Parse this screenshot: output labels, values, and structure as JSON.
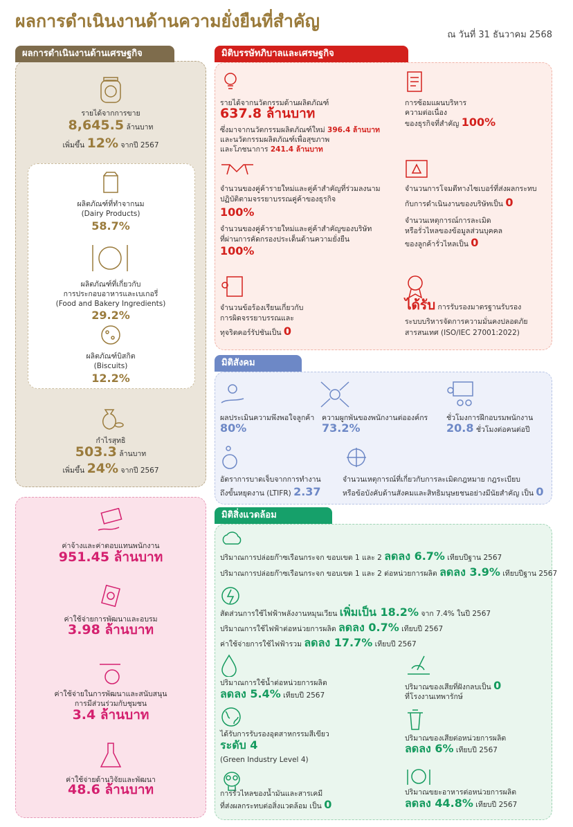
{
  "header": {
    "title": "ผลการดำเนินงานด้านความยั่งยืนที่สำคัญ",
    "date": "ณ วันที่ 31 ธันวาคม 2568"
  },
  "economic": {
    "title": "ผลการดำเนินงานด้านเศรษฐกิจ",
    "sales": {
      "label": "รายได้จากการขาย",
      "value": "8,645.5",
      "unit": "ล้านบาท",
      "change_prefix": "เพิ่มขึ้น",
      "change": "12%",
      "change_suffix": "จากปี 2567"
    },
    "products": [
      {
        "lines": [
          "ผลิตภัณฑ์ที่ทำจากนม",
          "(Dairy Products)"
        ],
        "share": "58.7%"
      },
      {
        "lines": [
          "ผลิตภัณฑ์ที่เกี่ยวกับ",
          "การประกอบอาหารและเบเกอรี่",
          "(Food and Bakery Ingredients)"
        ],
        "share": "29.2%"
      },
      {
        "lines": [
          "ผลิตภัณฑ์บิสกิต",
          "(Biscuits)"
        ],
        "share": "12.2%"
      }
    ],
    "net_profit": {
      "label": "กำไรสุทธิ",
      "value": "503.3",
      "unit": "ล้านบาท",
      "change_prefix": "เพิ่มขึ้น",
      "change": "24%",
      "change_suffix": "จากปี 2567"
    }
  },
  "spending": [
    {
      "lines": [
        "ค่าจ้างและค่าตอบแทนพนักงาน"
      ],
      "value": "951.45 ล้านบาท"
    },
    {
      "lines": [
        "ค่าใช้จ่ายการพัฒนาและอบรม"
      ],
      "value": "3.98 ล้านบาท"
    },
    {
      "lines": [
        "ค่าใช้จ่ายในการพัฒนาและสนับสนุน",
        "การมีส่วนร่วมกับชุมชน"
      ],
      "value": "3.4 ล้านบาท"
    },
    {
      "lines": [
        "ค่าใช้จ่ายด้านวิจัยและพัฒนา"
      ],
      "value": "48.6 ล้านบาท"
    }
  ],
  "governance": {
    "title": "มิติบรรษัทภิบาลและเศรษฐกิจ",
    "innovation": {
      "label": "รายได้จากนวัตกรรมด้านผลิตภัณฑ์",
      "value": "637.8 ล้านบาท",
      "line1": "ซึ่งมาจากนวัตกรรมผลิตภัณฑ์ใหม่",
      "value1": "396.4 ล้านบาท",
      "line2": "และนวัตกรรมผลิตภัณฑ์เพื่อสุขภาพ",
      "line3": "และโภชนาการ",
      "value2": "241.4 ล้านบาท"
    },
    "bcp": {
      "lines": [
        "การซ้อมแผนบริหาร",
        "ความต่อเนื่อง",
        "ของธุรกิจที่สำคัญ"
      ],
      "value": "100%"
    },
    "suppliers": [
      {
        "lines": [
          "จำนวนของคู่ค้ารายใหม่และคู่ค้าสำคัญที่ร่วมลงนาม",
          "ปฏิบัติตามจรรยาบรรณคู่ค้าของธุรกิจ"
        ],
        "value": "100%"
      },
      {
        "lines": [
          "จำนวนของคู่ค้ารายใหม่และคู่ค้าสำคัญของบริษัท",
          "ที่ผ่านการคัดกรองประเด็นด้านความยั่งยืน"
        ],
        "value": "100%"
      }
    ],
    "cyber": {
      "line1": "จำนวนการโจมตีทางไซเบอร์ที่ส่งผลกระทบ",
      "line2": "กับการดำเนินงานของบริษัทเป็น",
      "value": "0"
    },
    "privacy": {
      "line1": "จำนวนเหตุการณ์การละเมิด",
      "line2": "หรือรั่วไหลของข้อมูลส่วนบุคคล",
      "line3": "ของลูกค้ารั่วไหลเป็น",
      "value": "0"
    },
    "complaints": {
      "line1": "จำนวนข้อร้องเรียนเกี่ยวกับ",
      "line2": "การผิดจรรยาบรรณและ",
      "line3": "ทุจริตคอร์รัปชันเป็น",
      "value": "0"
    },
    "iso": {
      "highlight": "ได้รับ",
      "line1": "การรับรองมาตรฐานรับรอง",
      "line2": "ระบบบริหารจัดการความมั่นคงปลอดภัย",
      "line3": "สารสนเทศ (ISO/IEC 27001:2022)"
    }
  },
  "social": {
    "title": "มิติสังคม",
    "satisfaction": {
      "label": "ผลประเมินความพึงพอใจลูกค้า",
      "value": "80%"
    },
    "engagement": {
      "label": "ความผูกพันของพนักงานต่อองค์กร",
      "value": "73.2%"
    },
    "training": {
      "label": "ชั่วโมงการฝึกอบรมพนักงาน",
      "value": "20.8",
      "unit": "ชั่วโมงต่อคนต่อปี"
    },
    "ltifr": {
      "line1": "อัตราการบาดเจ็บจากการทำงาน",
      "line2": "ถึงขั้นหยุดงาน (LTIFR)",
      "value": "2.37"
    },
    "violations": {
      "line1": "จำนวนเหตุการณ์ที่เกี่ยวกับการละเมิดกฎหมาย กฎระเบียบ",
      "line2": "หรือข้อบังคับด้านสังคมและสิทธิมนุษยชนอย่างมีนัยสำคัญ เป็น",
      "value": "0"
    }
  },
  "environment": {
    "title": "มิติสิ่งแวดล้อม",
    "ghg": [
      {
        "label": "ปริมาณการปล่อยก๊าซเรือนกระจก ขอบเขต 1 และ 2",
        "value": "ลดลง 6.7%",
        "note": "เทียบปีฐาน 2567"
      },
      {
        "label": "ปริมาณการปล่อยก๊าซเรือนกระจก ขอบเขต 1 และ 2 ต่อหน่วยการผลิต",
        "value": "ลดลง 3.9%",
        "note": "เทียบปีฐาน 2567"
      }
    ],
    "energy": [
      {
        "label": "สัดส่วนการใช้ไฟฟ้าพลังงานหมุนเวียน",
        "value": "เพิ่มเป็น 18.2%",
        "note": "จาก 7.4% ในปี 2567"
      },
      {
        "label": "ปริมาณการใช้ไฟฟ้าต่อหน่วยการผลิต",
        "value": "ลดลง 0.7%",
        "note": "เทียบปี 2567"
      },
      {
        "label": "ค่าใช้จ่ายการใช้ไฟฟ้ารวม",
        "value": "ลดลง 17.7%",
        "note": "เทียบปี 2567"
      }
    ],
    "water": {
      "label": "ปริมาณการใช้น้ำต่อหน่วยการผลิต",
      "value": "ลดลง 5.4%",
      "note": "เทียบปี 2567"
    },
    "landfill": {
      "line1": "ปริมาณของเสียที่ฝังกลบเป็น",
      "value": "0",
      "line2": "ที่โรงงานเทพารักษ์"
    },
    "green": {
      "label": "ได้รับการรับรองอุตสาหกรรมสีเขียว",
      "value": "ระดับ 4",
      "note": "(Green Industry Level 4)"
    },
    "waste": {
      "label": "ปริมาณของเสียต่อหน่วยการผลิต",
      "value": "ลดลง 6%",
      "note": "เทียบปี 2567"
    },
    "spill": {
      "line1": "การรั่วไหลของน้ำมันและสารเคมี",
      "line2": "ที่ส่งผลกระทบต่อสิ่งแวดล้อม เป็น",
      "value": "0"
    },
    "food_waste": {
      "label": "ปริมาณขยะอาหารต่อหน่วยการผลิต",
      "value": "ลดลง 44.8%",
      "note": "เทียบปี 2567"
    }
  }
}
